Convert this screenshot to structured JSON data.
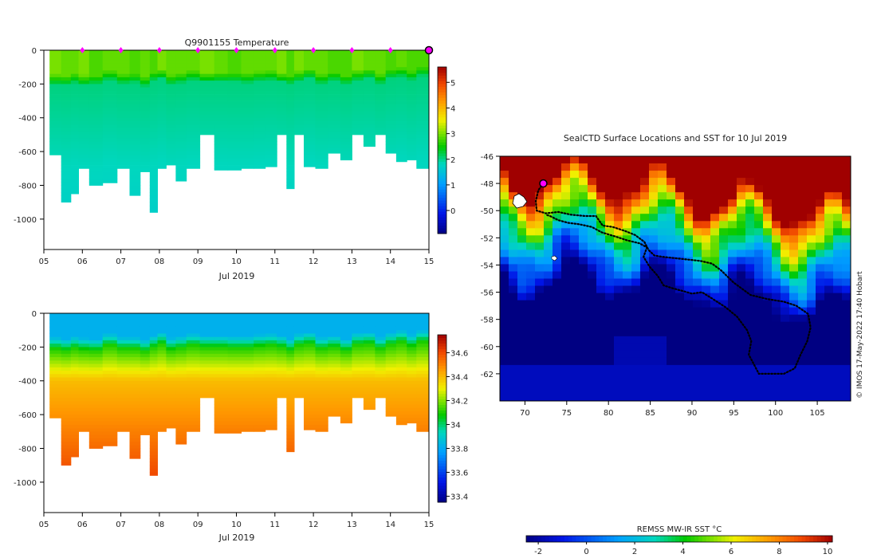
{
  "colors": {
    "deep_blue": "#00008b",
    "land_marker": "#ff00ff",
    "track": "#000000"
  },
  "chart_data": [
    {
      "type": "heatmap",
      "id": "temperature",
      "title": "Q9901155  Temperature",
      "xlabel": "Jul 2019",
      "ylabel": "",
      "x_tick_labels": [
        "05",
        "06",
        "07",
        "08",
        "09",
        "10",
        "11",
        "12",
        "13",
        "14",
        "15"
      ],
      "x_range": [
        5,
        15
      ],
      "y_tick_values": [
        0,
        -200,
        -400,
        -600,
        -800,
        -1000
      ],
      "y_range": [
        -1180,
        0
      ],
      "colorbar_ticks": [
        0,
        1,
        2,
        3,
        4,
        5
      ],
      "colorbar_range": [
        -0.9,
        5.6
      ],
      "profile_markers_days": [
        6,
        7,
        8,
        9,
        10,
        11,
        12,
        13,
        14
      ],
      "end_marker_day": 15,
      "profiles": [
        {
          "x": 5.3,
          "depth": 620,
          "surf": 3.0,
          "mix": 140
        },
        {
          "x": 5.6,
          "depth": 900,
          "surf": 2.9,
          "mix": 150
        },
        {
          "x": 5.8,
          "depth": 850,
          "surf": 2.9,
          "mix": 135
        },
        {
          "x": 6.0,
          "depth": 700,
          "surf": 3.0,
          "mix": 145
        },
        {
          "x": 6.35,
          "depth": 800,
          "surf": 2.8,
          "mix": 150
        },
        {
          "x": 6.7,
          "depth": 785,
          "surf": 2.9,
          "mix": 120
        },
        {
          "x": 7.1,
          "depth": 700,
          "surf": 2.9,
          "mix": 140
        },
        {
          "x": 7.35,
          "depth": 860,
          "surf": 2.8,
          "mix": 140
        },
        {
          "x": 7.65,
          "depth": 720,
          "surf": 2.9,
          "mix": 155
        },
        {
          "x": 7.85,
          "depth": 960,
          "surf": 2.8,
          "mix": 130
        },
        {
          "x": 8.05,
          "depth": 700,
          "surf": 3.0,
          "mix": 110
        },
        {
          "x": 8.3,
          "depth": 680,
          "surf": 2.9,
          "mix": 145
        },
        {
          "x": 8.55,
          "depth": 775,
          "surf": 2.9,
          "mix": 135
        },
        {
          "x": 8.85,
          "depth": 700,
          "surf": 2.9,
          "mix": 120
        },
        {
          "x": 9.25,
          "depth": 500,
          "surf": 3.0,
          "mix": 130
        },
        {
          "x": 9.6,
          "depth": 710,
          "surf": 2.9,
          "mix": 130
        },
        {
          "x": 9.95,
          "depth": 710,
          "surf": 2.8,
          "mix": 135
        },
        {
          "x": 10.3,
          "depth": 700,
          "surf": 2.9,
          "mix": 135
        },
        {
          "x": 10.6,
          "depth": 700,
          "surf": 2.9,
          "mix": 125
        },
        {
          "x": 10.9,
          "depth": 690,
          "surf": 2.9,
          "mix": 120
        },
        {
          "x": 11.2,
          "depth": 500,
          "surf": 3.0,
          "mix": 130
        },
        {
          "x": 11.4,
          "depth": 820,
          "surf": 2.8,
          "mix": 150
        },
        {
          "x": 11.6,
          "depth": 500,
          "surf": 3.0,
          "mix": 120
        },
        {
          "x": 11.9,
          "depth": 690,
          "surf": 2.9,
          "mix": 110
        },
        {
          "x": 12.2,
          "depth": 700,
          "surf": 2.9,
          "mix": 140
        },
        {
          "x": 12.55,
          "depth": 610,
          "surf": 2.8,
          "mix": 130
        },
        {
          "x": 12.85,
          "depth": 650,
          "surf": 2.8,
          "mix": 150
        },
        {
          "x": 13.15,
          "depth": 500,
          "surf": 3.0,
          "mix": 115
        },
        {
          "x": 13.45,
          "depth": 570,
          "surf": 2.9,
          "mix": 110
        },
        {
          "x": 13.75,
          "depth": 500,
          "surf": 2.9,
          "mix": 140
        },
        {
          "x": 14.0,
          "depth": 610,
          "surf": 2.8,
          "mix": 115
        },
        {
          "x": 14.3,
          "depth": 660,
          "surf": 2.9,
          "mix": 100
        },
        {
          "x": 14.55,
          "depth": 650,
          "surf": 2.8,
          "mix": 125
        },
        {
          "x": 14.8,
          "depth": 700,
          "surf": 2.8,
          "mix": 100
        }
      ]
    },
    {
      "type": "heatmap",
      "id": "salinity",
      "title": "",
      "xlabel": "Jul 2019",
      "ylabel": "",
      "x_tick_labels": [
        "05",
        "06",
        "07",
        "08",
        "09",
        "10",
        "11",
        "12",
        "13",
        "14",
        "15"
      ],
      "x_range": [
        5,
        15
      ],
      "y_tick_values": [
        0,
        -200,
        -400,
        -600,
        -800,
        -1000
      ],
      "y_range": [
        -1180,
        0
      ],
      "colorbar_ticks": [
        "33.4",
        "33.6",
        "33.8",
        "34",
        "34.2",
        "34.4",
        "34.6"
      ],
      "colorbar_range": [
        33.35,
        34.75
      ]
    },
    {
      "type": "heatmap",
      "id": "sst_map",
      "title": "SealCTD Surface Locations and SST for 10 Jul 2019",
      "x_tick_labels": [
        "70",
        "75",
        "80",
        "85",
        "90",
        "95",
        "100",
        "105"
      ],
      "x_range": [
        67,
        109
      ],
      "y_tick_labels": [
        "-46",
        "-48",
        "-50",
        "-52",
        "-54",
        "-56",
        "-58",
        "-60",
        "-62"
      ],
      "y_range": [
        -64,
        -46
      ],
      "colorbar_label": "REMSS MW-IR SST °C",
      "colorbar_ticks": [
        "-2",
        "0",
        "2",
        "4",
        "6",
        "8",
        "10"
      ],
      "colorbar_range": [
        -2.5,
        10.2
      ],
      "current_position": [
        72.2,
        -48.0
      ],
      "credit": "© IMOS 17-May-2022 17:40 Hobart",
      "track": [
        [
          72.2,
          -48.0
        ],
        [
          71.6,
          -48.5
        ],
        [
          71.3,
          -49.3
        ],
        [
          71.4,
          -50.0
        ],
        [
          72.5,
          -50.2
        ],
        [
          74,
          -50.1
        ],
        [
          75.5,
          -50.3
        ],
        [
          77.2,
          -50.4
        ],
        [
          78.5,
          -50.4
        ],
        [
          79.3,
          -51.1
        ],
        [
          80.5,
          -51.2
        ],
        [
          82,
          -51.5
        ],
        [
          83.2,
          -51.8
        ],
        [
          84.3,
          -52.3
        ],
        [
          84.8,
          -52.9
        ],
        [
          85.5,
          -53.3
        ],
        [
          86.5,
          -53.4
        ],
        [
          88,
          -53.5
        ],
        [
          89.5,
          -53.6
        ],
        [
          91,
          -53.7
        ],
        [
          92.4,
          -53.9
        ],
        [
          93.5,
          -54.4
        ],
        [
          95,
          -55.3
        ],
        [
          97,
          -56.2
        ],
        [
          99,
          -56.5
        ],
        [
          101,
          -56.7
        ],
        [
          102.5,
          -57.0
        ],
        [
          103.9,
          -57.6
        ],
        [
          104.2,
          -58.6
        ],
        [
          103.8,
          -59.6
        ],
        [
          103,
          -60.6
        ],
        [
          102.3,
          -61.6
        ],
        [
          101,
          -62.0
        ],
        [
          99.5,
          -62.0
        ],
        [
          98,
          -62.0
        ],
        [
          97.5,
          -61.4
        ],
        [
          96.8,
          -60.6
        ],
        [
          97.1,
          -59.6
        ],
        [
          96.6,
          -58.8
        ],
        [
          95.4,
          -57.8
        ],
        [
          94,
          -57.1
        ],
        [
          92.5,
          -56.5
        ],
        [
          91.2,
          -56.0
        ],
        [
          90,
          -56.1
        ],
        [
          88.8,
          -55.9
        ],
        [
          87.6,
          -55.7
        ],
        [
          86.6,
          -55.5
        ],
        [
          85.9,
          -54.8
        ],
        [
          84.9,
          -54.1
        ],
        [
          84.2,
          -53.4
        ],
        [
          84.6,
          -52.7
        ],
        [
          83.7,
          -52.4
        ],
        [
          82.3,
          -52.2
        ],
        [
          80.8,
          -51.9
        ],
        [
          79.2,
          -51.6
        ],
        [
          78,
          -51.2
        ],
        [
          76.5,
          -51.0
        ],
        [
          75.2,
          -50.9
        ],
        [
          74,
          -50.7
        ],
        [
          73,
          -50.4
        ],
        [
          72.5,
          -50.3
        ]
      ]
    }
  ]
}
